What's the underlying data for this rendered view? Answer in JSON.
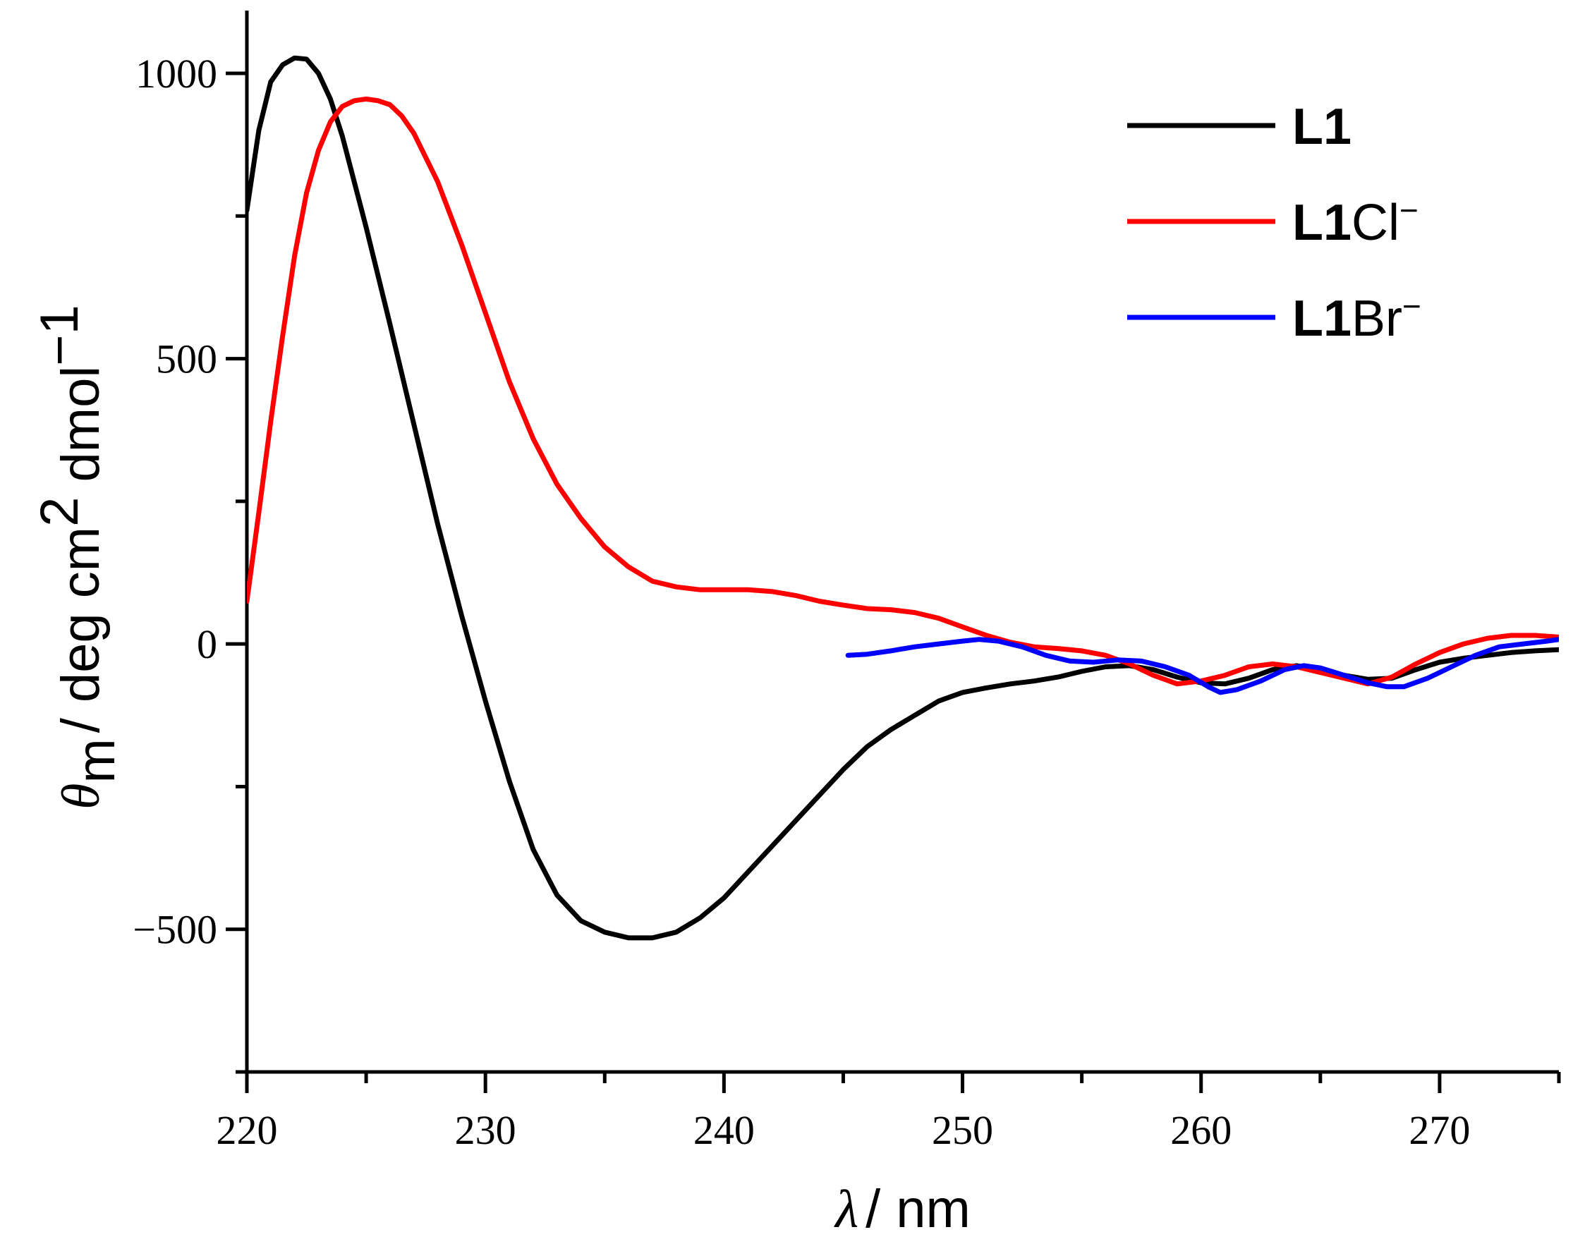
{
  "chart_data": {
    "type": "line",
    "title": "",
    "xlabel": {
      "symbol": "λ",
      "slash": "/",
      "unit": "nm"
    },
    "ylabel": {
      "symbol": "θ",
      "subscript": "m",
      "slash": "/",
      "unit_a": "deg cm",
      "sup_a": "2",
      "unit_b": " dmol",
      "sup_b": "−1"
    },
    "xlim": [
      220,
      275
    ],
    "ylim": [
      -750,
      1110
    ],
    "xticks": [
      220,
      230,
      240,
      250,
      260,
      270
    ],
    "xticks_minor": [
      225,
      235,
      245,
      255,
      265,
      275
    ],
    "yticks": [
      -500,
      0,
      500,
      1000
    ],
    "ytick_labels": [
      "−500",
      "0",
      "500",
      "1000"
    ],
    "yticks_minor": [
      -750,
      -250,
      250,
      750
    ],
    "legend_position": "top-right",
    "series": [
      {
        "name": "L1",
        "label_main": "L1",
        "label_ion": "",
        "label_sup": "",
        "color": "#000000",
        "x": [
          220,
          220.5,
          221,
          221.5,
          222,
          222.5,
          223,
          223.5,
          224,
          225,
          226,
          227,
          228,
          229,
          230,
          231,
          232,
          233,
          234,
          235,
          236,
          237,
          238,
          239,
          240,
          241,
          242,
          243,
          244,
          245,
          246,
          247,
          248,
          249,
          250,
          251,
          252,
          253,
          254,
          255,
          256,
          257,
          258,
          259,
          260,
          261,
          262,
          263,
          264,
          265,
          266,
          267,
          268,
          269,
          270,
          271,
          272,
          273,
          274,
          275
        ],
        "y": [
          760,
          900,
          985,
          1015,
          1027,
          1025,
          1000,
          955,
          890,
          730,
          560,
          385,
          210,
          50,
          -100,
          -240,
          -360,
          -440,
          -485,
          -505,
          -515,
          -515,
          -505,
          -480,
          -445,
          -400,
          -355,
          -310,
          -265,
          -220,
          -180,
          -150,
          -125,
          -100,
          -85,
          -77,
          -70,
          -65,
          -58,
          -48,
          -40,
          -38,
          -45,
          -58,
          -68,
          -70,
          -60,
          -45,
          -38,
          -45,
          -55,
          -62,
          -60,
          -45,
          -32,
          -25,
          -20,
          -15,
          -12,
          -10
        ]
      },
      {
        "name": "L1Cl−",
        "label_main": "L1",
        "label_ion": "Cl",
        "label_sup": "−",
        "color": "#ff0000",
        "x": [
          220,
          220.5,
          221,
          221.5,
          222,
          222.5,
          223,
          223.5,
          224,
          224.5,
          225,
          225.5,
          226,
          226.5,
          227,
          228,
          229,
          230,
          231,
          232,
          233,
          234,
          235,
          236,
          237,
          238,
          239,
          240,
          241,
          242,
          243,
          244,
          245,
          246,
          247,
          248,
          249,
          250,
          251,
          252,
          253,
          254,
          255,
          256,
          257,
          258,
          259,
          260,
          261,
          262,
          263,
          264,
          265,
          266,
          267,
          268,
          269,
          270,
          271,
          272,
          273,
          274,
          275
        ],
        "y": [
          75,
          230,
          390,
          540,
          680,
          790,
          865,
          915,
          942,
          952,
          955,
          952,
          945,
          925,
          895,
          810,
          700,
          580,
          460,
          360,
          280,
          220,
          170,
          135,
          110,
          100,
          95,
          95,
          95,
          92,
          85,
          75,
          68,
          62,
          60,
          55,
          45,
          30,
          15,
          3,
          -5,
          -8,
          -12,
          -20,
          -35,
          -55,
          -70,
          -65,
          -55,
          -40,
          -35,
          -40,
          -50,
          -60,
          -70,
          -58,
          -35,
          -15,
          0,
          10,
          15,
          15,
          12
        ]
      },
      {
        "name": "L1Br−",
        "label_main": "L1",
        "label_ion": "Br",
        "label_sup": "−",
        "color": "#0000ff",
        "x": [
          245.2,
          246,
          247,
          248,
          249,
          250,
          250.7,
          251.5,
          252.5,
          253.5,
          254.5,
          255.5,
          256.5,
          257.5,
          258.5,
          259.5,
          260.3,
          260.8,
          261.5,
          262.5,
          263.5,
          264.3,
          265,
          266,
          267,
          267.8,
          268.5,
          269.5,
          270.5,
          271.5,
          272.5,
          273.5,
          274.5,
          275
        ],
        "y": [
          -20,
          -18,
          -12,
          -5,
          0,
          5,
          8,
          5,
          -5,
          -20,
          -30,
          -32,
          -28,
          -30,
          -40,
          -55,
          -75,
          -85,
          -80,
          -65,
          -45,
          -38,
          -42,
          -55,
          -68,
          -75,
          -75,
          -60,
          -40,
          -20,
          -5,
          0,
          5,
          8
        ]
      }
    ]
  }
}
